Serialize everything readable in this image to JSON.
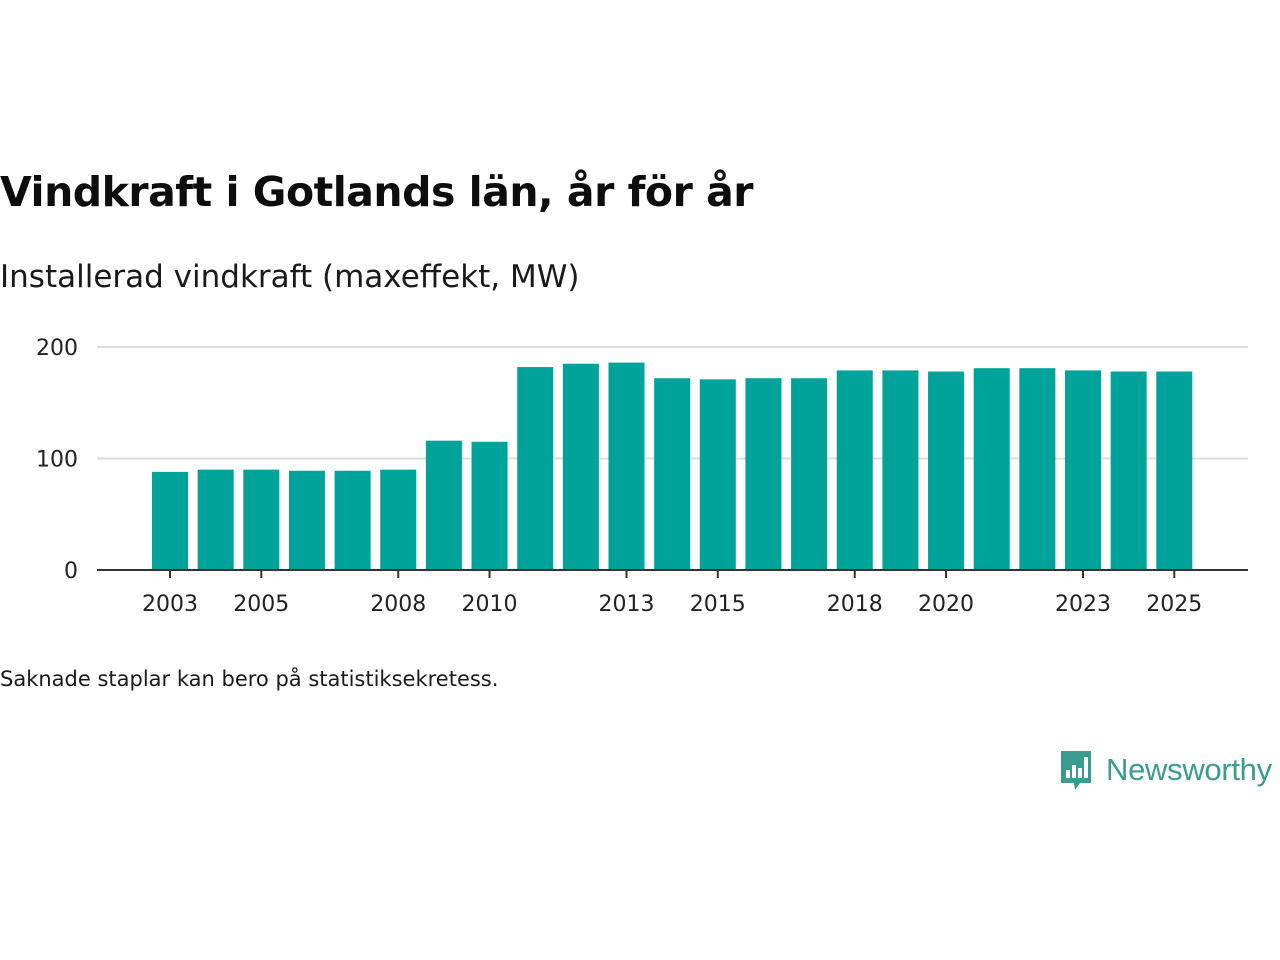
{
  "title": "Vindkraft i Gotlands län, år för år",
  "subtitle": "Installerad vindkraft (maxeffekt, MW)",
  "footnote": "Saknade staplar kan bero på statistiksekretess.",
  "brand": {
    "name": "Newsworthy",
    "icon": "newsworthy-logo-icon",
    "color": "#3a9c8f"
  },
  "chart_data": {
    "type": "bar",
    "title": "Vindkraft i Gotlands län, år för år",
    "ylabel": "Installerad vindkraft (maxeffekt, MW)",
    "xlabel": "",
    "ylim": [
      0,
      200
    ],
    "grid": true,
    "bar_color": "#00a39a",
    "y_ticks": [
      0,
      100,
      200
    ],
    "x_tick_labels": [
      "2003",
      "2005",
      "2008",
      "2010",
      "2013",
      "2015",
      "2018",
      "2020",
      "2023",
      "2025"
    ],
    "categories": [
      "2003",
      "2004",
      "2005",
      "2006",
      "2007",
      "2008",
      "2009",
      "2010",
      "2011",
      "2012",
      "2013",
      "2014",
      "2015",
      "2016",
      "2017",
      "2018",
      "2019",
      "2020",
      "2021",
      "2022",
      "2023",
      "2024",
      "2025"
    ],
    "values": [
      88,
      90,
      90,
      89,
      89,
      90,
      116,
      115,
      182,
      185,
      186,
      172,
      171,
      172,
      172,
      179,
      179,
      178,
      181,
      181,
      179,
      178,
      178
    ]
  }
}
